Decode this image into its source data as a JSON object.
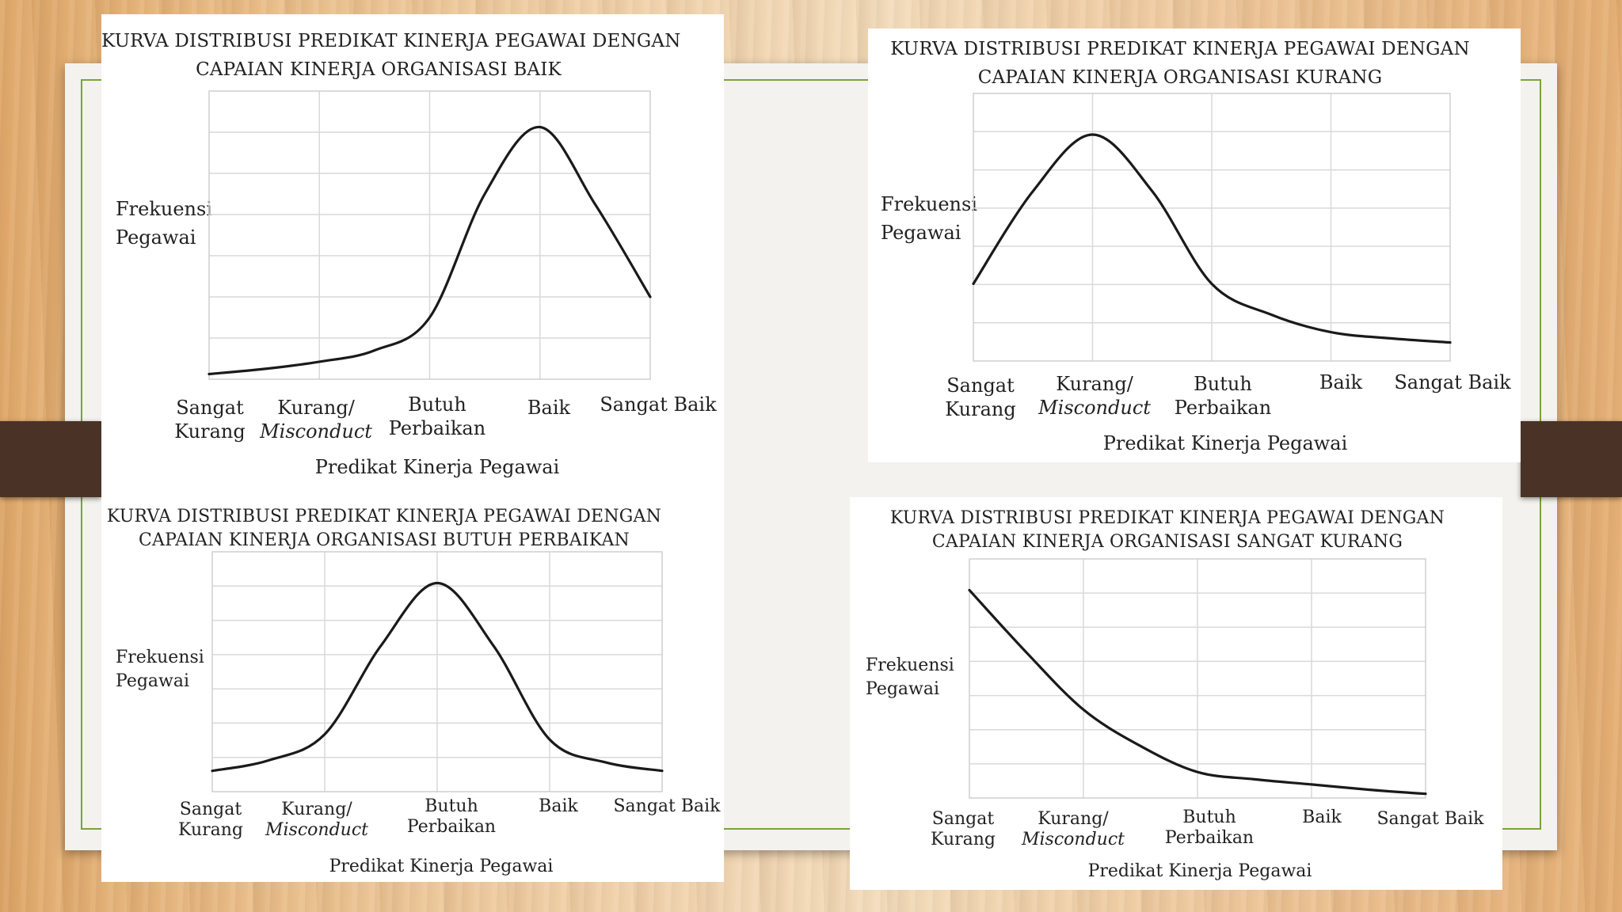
{
  "chart_data": [
    {
      "type": "line",
      "title_line1": "KURVA DISTRIBUSI PREDIKAT KINERJA PEGAWAI DENGAN",
      "title_line2": "CAPAIAN KINERJA ORGANISASI BAIK",
      "ylabel_line1": "Frekuensi",
      "ylabel_line2": "Pegawai",
      "xlabel": "Predikat Kinerja Pegawai",
      "categories": [
        {
          "line1": "Sangat",
          "line2": "Kurang"
        },
        {
          "line1": "Kurang/",
          "line2": "Misconduct"
        },
        {
          "line1": "Butuh",
          "line2": "Perbaikan"
        },
        {
          "line1": "Baik",
          "line2": ""
        },
        {
          "line1": "Sangat Baik",
          "line2": ""
        }
      ],
      "x": [
        0,
        0.5,
        1,
        1.5,
        2,
        2.5,
        3,
        3.5,
        4
      ],
      "y": [
        5,
        10,
        17,
        28,
        60,
        180,
        245,
        170,
        80
      ],
      "xlim": [
        0,
        4
      ],
      "ylim": [
        0,
        280
      ],
      "grid": true
    },
    {
      "type": "line",
      "title_line1": "KURVA DISTRIBUSI PREDIKAT KINERJA PEGAWAI DENGAN",
      "title_line2": "CAPAIAN KINERJA ORGANISASI KURANG",
      "ylabel_line1": "Frekuensi",
      "ylabel_line2": "Pegawai",
      "xlabel": "Predikat Kinerja Pegawai",
      "categories": [
        {
          "line1": "Sangat",
          "line2": "Kurang"
        },
        {
          "line1": "Kurang/",
          "line2": "Misconduct"
        },
        {
          "line1": "Butuh",
          "line2": "Perbaikan"
        },
        {
          "line1": "Baik",
          "line2": ""
        },
        {
          "line1": "Sangat Baik",
          "line2": ""
        }
      ],
      "x": [
        0,
        0.5,
        1,
        1.5,
        2,
        2.5,
        3,
        3.5,
        4
      ],
      "y": [
        75,
        165,
        220,
        165,
        75,
        45,
        28,
        22,
        18
      ],
      "xlim": [
        0,
        4
      ],
      "ylim": [
        0,
        260
      ],
      "grid": true
    },
    {
      "type": "line",
      "title_line1": "KURVA DISTRIBUSI PREDIKAT KINERJA PEGAWAI DENGAN",
      "title_line2": "CAPAIAN KINERJA ORGANISASI BUTUH PERBAIKAN",
      "ylabel_line1": "Frekuensi",
      "ylabel_line2": "Pegawai",
      "xlabel": "Predikat Kinerja Pegawai",
      "categories": [
        {
          "line1": "Sangat",
          "line2": "Kurang"
        },
        {
          "line1": "Kurang/",
          "line2": "Misconduct"
        },
        {
          "line1": "Butuh",
          "line2": "Perbaikan"
        },
        {
          "line1": "Baik",
          "line2": ""
        },
        {
          "line1": "Sangat Baik",
          "line2": ""
        }
      ],
      "x": [
        0,
        0.5,
        1,
        1.5,
        2,
        2.5,
        3,
        3.5,
        4
      ],
      "y": [
        20,
        30,
        55,
        140,
        200,
        140,
        50,
        28,
        20
      ],
      "xlim": [
        0,
        4
      ],
      "ylim": [
        0,
        230
      ],
      "grid": true
    },
    {
      "type": "line",
      "title_line1": "KURVA DISTRIBUSI PREDIKAT KINERJA PEGAWAI DENGAN",
      "title_line2": "CAPAIAN KINERJA ORGANISASI SANGAT KURANG",
      "ylabel_line1": "Frekuensi",
      "ylabel_line2": "Pegawai",
      "xlabel": "Predikat Kinerja Pegawai",
      "categories": [
        {
          "line1": "Sangat",
          "line2": "Kurang"
        },
        {
          "line1": "Kurang/",
          "line2": "Misconduct"
        },
        {
          "line1": "Butuh",
          "line2": "Perbaikan"
        },
        {
          "line1": "Baik",
          "line2": ""
        },
        {
          "line1": "Sangat Baik",
          "line2": ""
        }
      ],
      "x": [
        0,
        0.5,
        1,
        1.5,
        2,
        2.5,
        3,
        3.5,
        4
      ],
      "y": [
        200,
        140,
        85,
        50,
        25,
        18,
        13,
        8,
        4
      ],
      "xlim": [
        0,
        4
      ],
      "ylim": [
        0,
        230
      ],
      "grid": true
    }
  ]
}
